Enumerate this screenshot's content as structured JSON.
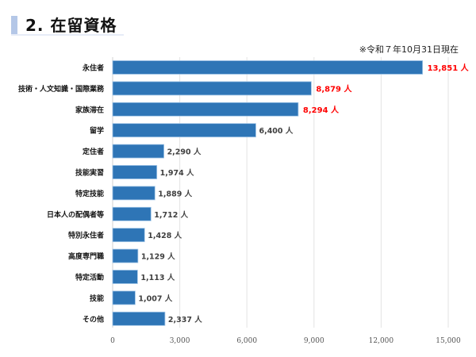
{
  "header": {
    "title": "2. 在留資格",
    "note": "※令和７年10月31日現在"
  },
  "chart_data": {
    "type": "bar",
    "orientation": "horizontal",
    "categories": [
      "永住者",
      "技術・人文知識・国際業務",
      "家族滞在",
      "留学",
      "定住者",
      "技能実習",
      "特定技能",
      "日本人の配偶者等",
      "特別永住者",
      "高度専門職",
      "特定活動",
      "技能",
      "その他"
    ],
    "values": [
      13851,
      8879,
      8294,
      6400,
      2290,
      1974,
      1889,
      1712,
      1428,
      1129,
      1113,
      1007,
      2337
    ],
    "data_labels": [
      "13,851 人",
      "8,879 人",
      "8,294 人",
      "6,400 人",
      "2,290 人",
      "1,974 人",
      "1,889 人",
      "1,712 人",
      "1,428 人",
      "1,129 人",
      "1,113 人",
      "1,007 人",
      "2,337 人"
    ],
    "highlighted": [
      true,
      true,
      true,
      false,
      false,
      false,
      false,
      false,
      false,
      false,
      false,
      false,
      false
    ],
    "xlim": [
      0,
      15000
    ],
    "xticks": [
      0,
      3000,
      6000,
      9000,
      12000,
      15000
    ],
    "xtick_labels": [
      "0",
      "3,000",
      "6,000",
      "9,000",
      "12,000",
      "15,000"
    ],
    "grid": true,
    "colors": {
      "bar": "#2e75b6",
      "highlight_label": "#ff0000",
      "label": "#404040"
    }
  }
}
